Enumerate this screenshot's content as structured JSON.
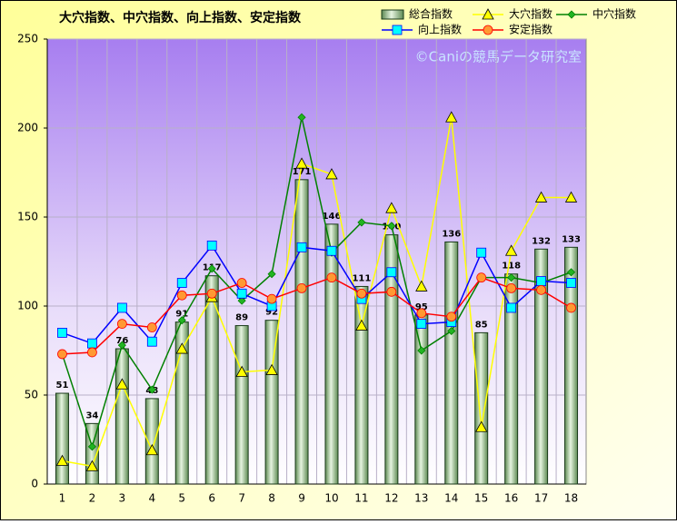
{
  "chart_data": {
    "type": "combo",
    "title": "大穴指数、中穴指数、向上指数、安定指数",
    "watermark": "©Caniの競馬データ研究室",
    "categories": [
      "1",
      "2",
      "3",
      "4",
      "5",
      "6",
      "7",
      "8",
      "9",
      "10",
      "11",
      "12",
      "13",
      "14",
      "15",
      "16",
      "17",
      "18"
    ],
    "ylim": [
      0,
      250
    ],
    "yticks": [
      0,
      50,
      100,
      150,
      200,
      250
    ],
    "grid": true,
    "series": [
      {
        "name": "総合指数",
        "type": "bar",
        "color": "#6f9e63",
        "values": [
          51,
          34,
          76,
          48,
          91,
          117,
          89,
          92,
          171,
          146,
          111,
          140,
          95,
          136,
          85,
          118,
          132,
          133
        ]
      },
      {
        "name": "大穴指数",
        "type": "line",
        "marker": "triangle",
        "color": "#ffff00",
        "values": [
          13,
          10,
          56,
          19,
          76,
          105,
          63,
          64,
          180,
          174,
          89,
          155,
          111,
          206,
          32,
          131,
          161,
          161
        ]
      },
      {
        "name": "中穴指数",
        "type": "line",
        "marker": "diamond",
        "color": "#008000",
        "values": [
          73,
          21,
          78,
          53,
          92,
          121,
          103,
          118,
          206,
          130,
          147,
          145,
          75,
          86,
          116,
          116,
          113,
          119
        ]
      },
      {
        "name": "向上指数",
        "type": "line",
        "marker": "square",
        "color": "#0000ff",
        "values": [
          85,
          79,
          99,
          80,
          113,
          134,
          107,
          100,
          133,
          131,
          104,
          119,
          90,
          91,
          130,
          99,
          114,
          113
        ]
      },
      {
        "name": "安定指数",
        "type": "line",
        "marker": "circle",
        "color": "#ff0000",
        "values": [
          73,
          74,
          90,
          88,
          106,
          107,
          113,
          104,
          110,
          116,
          107,
          108,
          96,
          94,
          116,
          110,
          109,
          99
        ]
      }
    ]
  }
}
